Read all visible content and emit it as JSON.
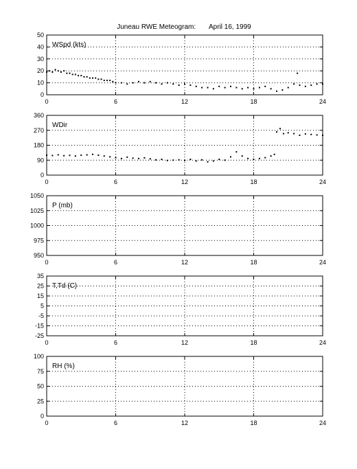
{
  "chart_data": {
    "type": "scatter",
    "title": "Juneau RWE Meteogram:       April 16, 1999",
    "xlim": [
      0,
      24
    ],
    "x_ticks": [
      0,
      6,
      12,
      18,
      24
    ],
    "grid": true,
    "panels": [
      {
        "label": "WSpd (kts)",
        "ylim": [
          0,
          50
        ],
        "y_ticks": [
          0,
          10,
          20,
          30,
          40,
          50
        ],
        "series": [
          {
            "points": [
              [
                0.0,
                19
              ],
              [
                0.25,
                20
              ],
              [
                0.5,
                19
              ],
              [
                0.75,
                21
              ],
              [
                1.0,
                20
              ],
              [
                1.25,
                19
              ],
              [
                1.5,
                20
              ],
              [
                1.75,
                18
              ],
              [
                2.0,
                18
              ],
              [
                2.25,
                17
              ],
              [
                2.5,
                17
              ],
              [
                2.75,
                16
              ],
              [
                3.0,
                16
              ],
              [
                3.25,
                15
              ],
              [
                3.5,
                15
              ],
              [
                3.75,
                14
              ],
              [
                4.0,
                14
              ],
              [
                4.25,
                14
              ],
              [
                4.5,
                13
              ],
              [
                4.75,
                13
              ],
              [
                5.0,
                12
              ],
              [
                5.25,
                12
              ],
              [
                5.5,
                12
              ],
              [
                5.75,
                11
              ],
              [
                6.0,
                10
              ],
              [
                6.5,
                10
              ],
              [
                7.0,
                9
              ],
              [
                7.5,
                10
              ],
              [
                8.0,
                11
              ],
              [
                8.5,
                10
              ],
              [
                9.0,
                11
              ],
              [
                9.5,
                10
              ],
              [
                10.0,
                9
              ],
              [
                10.5,
                10
              ],
              [
                11.0,
                9
              ],
              [
                11.5,
                8
              ],
              [
                12.0,
                9
              ],
              [
                12.5,
                8
              ],
              [
                13.0,
                7
              ],
              [
                13.5,
                6
              ],
              [
                14.0,
                6
              ],
              [
                14.5,
                5
              ],
              [
                15.0,
                7
              ],
              [
                15.5,
                6
              ],
              [
                16.0,
                7
              ],
              [
                16.5,
                6
              ],
              [
                17.0,
                5
              ],
              [
                17.5,
                6
              ],
              [
                18.0,
                5
              ],
              [
                18.5,
                6
              ],
              [
                19.0,
                7
              ],
              [
                19.5,
                5
              ],
              [
                20.0,
                3
              ],
              [
                20.5,
                4
              ],
              [
                21.0,
                6
              ],
              [
                21.5,
                9
              ],
              [
                21.8,
                18
              ],
              [
                22.0,
                8
              ],
              [
                22.5,
                7
              ],
              [
                23.0,
                8
              ],
              [
                23.5,
                9
              ],
              [
                24.0,
                9
              ]
            ]
          }
        ]
      },
      {
        "label": "WDir",
        "ylim": [
          0,
          360
        ],
        "y_ticks": [
          0,
          90,
          180,
          270,
          360
        ],
        "series": [
          {
            "points": [
              [
                0.0,
                120
              ],
              [
                0.5,
                118
              ],
              [
                1.0,
                122
              ],
              [
                1.5,
                117
              ],
              [
                2.0,
                119
              ],
              [
                2.5,
                115
              ],
              [
                3.0,
                120
              ],
              [
                3.5,
                122
              ],
              [
                4.0,
                125
              ],
              [
                4.5,
                120
              ],
              [
                5.0,
                115
              ],
              [
                5.5,
                110
              ],
              [
                6.0,
                105
              ],
              [
                6.5,
                100
              ],
              [
                7.0,
                108
              ],
              [
                7.5,
                102
              ],
              [
                8.0,
                100
              ],
              [
                8.5,
                104
              ],
              [
                9.0,
                98
              ],
              [
                9.5,
                92
              ],
              [
                10.0,
                95
              ],
              [
                10.5,
                88
              ],
              [
                11.0,
                90
              ],
              [
                11.5,
                92
              ],
              [
                12.0,
                88
              ],
              [
                12.5,
                95
              ],
              [
                13.0,
                85
              ],
              [
                13.5,
                92
              ],
              [
                14.0,
                80
              ],
              [
                14.5,
                85
              ],
              [
                15.0,
                95
              ],
              [
                15.5,
                90
              ],
              [
                16.0,
                110
              ],
              [
                16.5,
                140
              ],
              [
                17.0,
                115
              ],
              [
                17.5,
                100
              ],
              [
                18.0,
                95
              ],
              [
                18.5,
                100
              ],
              [
                19.0,
                105
              ],
              [
                19.5,
                115
              ],
              [
                19.8,
                125
              ],
              [
                20.0,
                260
              ],
              [
                20.3,
                280
              ],
              [
                20.6,
                250
              ],
              [
                21.0,
                255
              ],
              [
                21.5,
                250
              ],
              [
                22.0,
                240
              ],
              [
                22.5,
                248
              ],
              [
                23.0,
                245
              ],
              [
                23.5,
                242
              ],
              [
                24.0,
                240
              ]
            ]
          }
        ]
      },
      {
        "label": "P (mb)",
        "ylim": [
          950,
          1050
        ],
        "y_ticks": [
          950,
          975,
          1000,
          1025,
          1050
        ],
        "series": []
      },
      {
        "label": "T,Td (C)",
        "ylim": [
          -25,
          35
        ],
        "y_ticks": [
          -25,
          -15,
          -5,
          5,
          15,
          25,
          35
        ],
        "series": []
      },
      {
        "label": "RH (%)",
        "ylim": [
          0,
          100
        ],
        "y_ticks": [
          0,
          25,
          50,
          75,
          100
        ],
        "series": []
      }
    ]
  }
}
